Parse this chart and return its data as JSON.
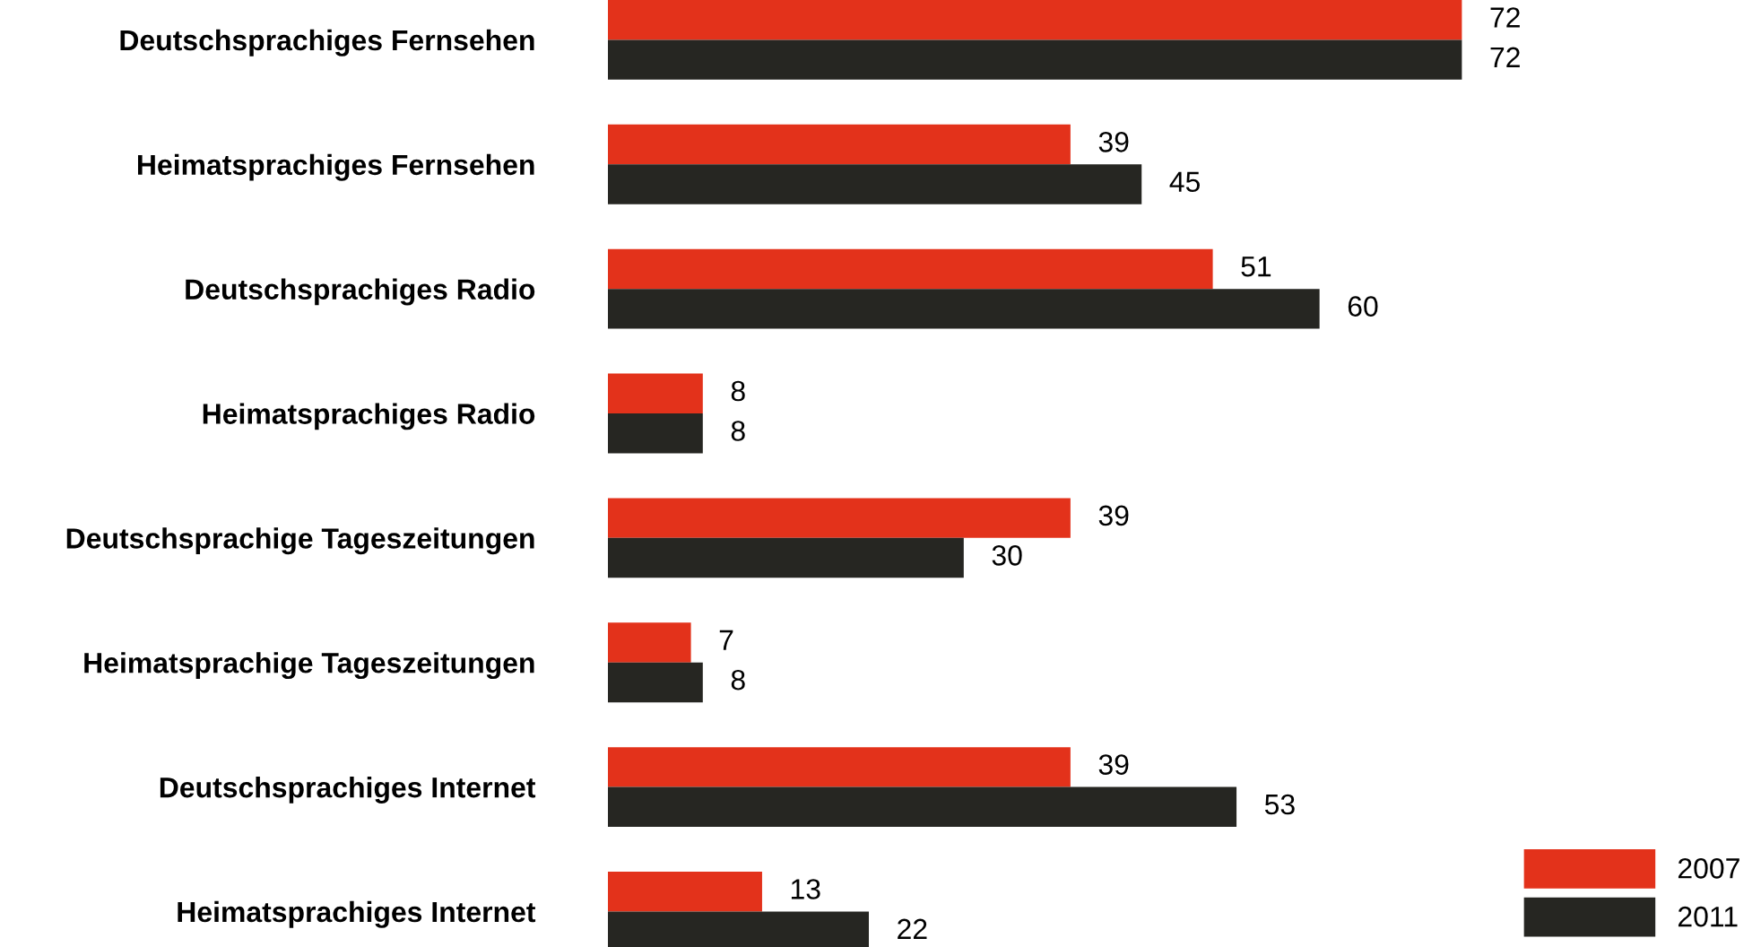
{
  "chart_data": {
    "type": "bar",
    "orientation": "horizontal",
    "categories": [
      "Deutschsprachiges Fernsehen",
      "Heimatsprachiges Fernsehen",
      "Deutschsprachiges Radio",
      "Heimatsprachiges Radio",
      "Deutschsprachige Tageszeitungen",
      "Heimatsprachige Tageszeitungen",
      "Deutschsprachiges Internet",
      "Heimatsprachiges Internet"
    ],
    "series": [
      {
        "name": "2007",
        "color": "#e3321b",
        "values": [
          72,
          39,
          51,
          8,
          39,
          7,
          39,
          13
        ]
      },
      {
        "name": "2011",
        "color": "#262622",
        "values": [
          72,
          45,
          60,
          8,
          30,
          8,
          53,
          22
        ]
      }
    ],
    "data_labels": true,
    "legend": "bottom right",
    "grid": false,
    "tick_labels": "y"
  }
}
